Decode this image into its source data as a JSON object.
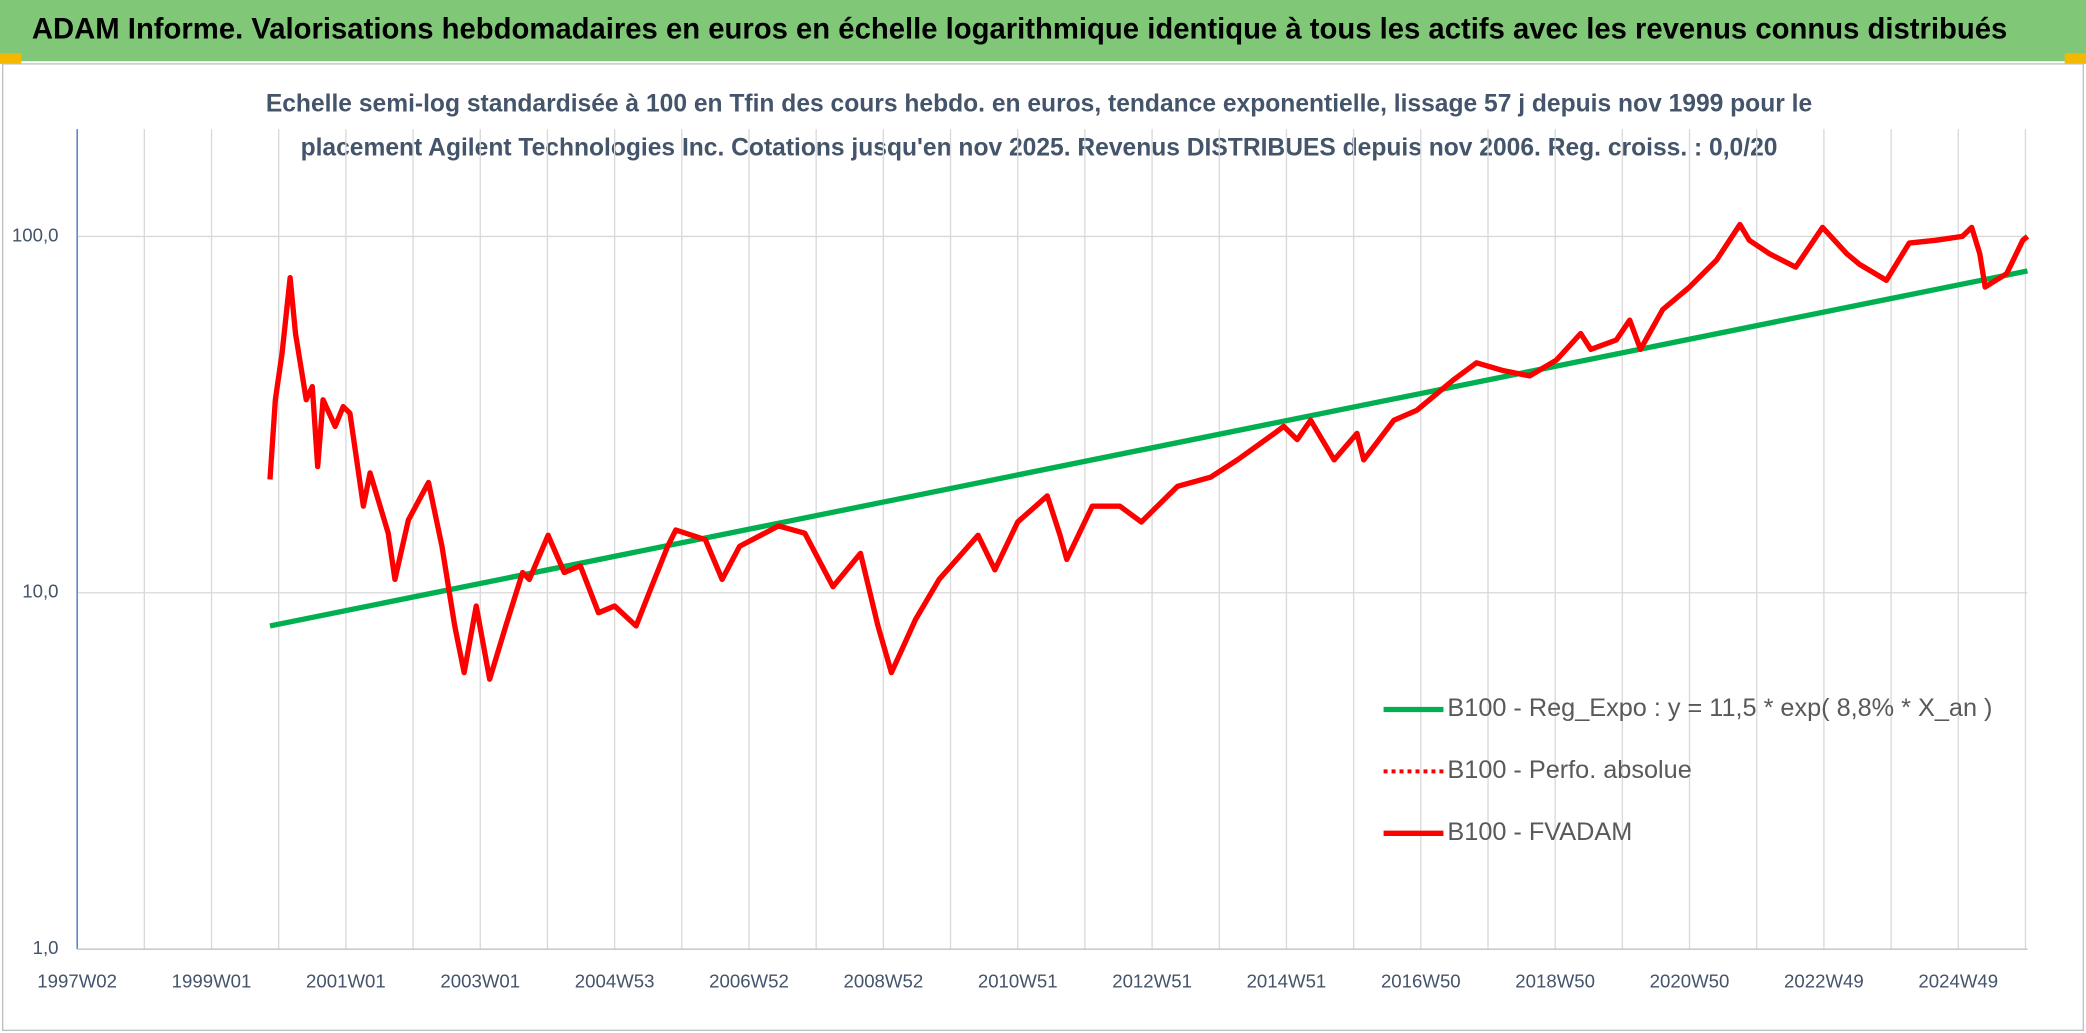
{
  "chart_data": {
    "type": "line",
    "title": "ADAM Informe. Valorisations hebdomadaires en euros en échelle logarithmique identique à tous les actifs avec les revenus connus distribués",
    "subtitle": [
      "Echelle semi-log standardisée à 100 en Tfin des cours hebdo. en euros, tendance exponentielle, lissage 57 j depuis nov 1999 pour le",
      "placement Agilent Technologies Inc. Cotations jusqu'en nov 2025. Revenus DISTRIBUES depuis nov 2006. Reg. croiss. : 0,0/20"
    ],
    "log_y": true,
    "grid": true,
    "legend": "right",
    "xlim": [
      1997,
      2026.03
    ],
    "xticks": [
      {
        "value": 1997,
        "label": "1997W02"
      },
      {
        "value": 1999,
        "label": "1999W01"
      },
      {
        "value": 2001,
        "label": "2001W01"
      },
      {
        "value": 2003,
        "label": "2003W01"
      },
      {
        "value": 2005,
        "label": "2004W53"
      },
      {
        "value": 2007,
        "label": "2006W52"
      },
      {
        "value": 2009,
        "label": "2008W52"
      },
      {
        "value": 2011,
        "label": "2010W51"
      },
      {
        "value": 2013,
        "label": "2012W51"
      },
      {
        "value": 2015,
        "label": "2014W51"
      },
      {
        "value": 2017,
        "label": "2016W50"
      },
      {
        "value": 2019,
        "label": "2018W50"
      },
      {
        "value": 2021,
        "label": "2020W50"
      },
      {
        "value": 2023,
        "label": "2022W49"
      },
      {
        "value": 2025,
        "label": "2024W49"
      }
    ],
    "xminorticks": [
      1998,
      2000,
      2002,
      2004,
      2006,
      2008,
      2010,
      2012,
      2014,
      2016,
      2018,
      2020,
      2022,
      2024,
      2026
    ],
    "ylim": [
      1,
      200
    ],
    "yticks": [
      {
        "value": 1,
        "label": "1,0"
      },
      {
        "value": 10,
        "label": "10,0"
      },
      {
        "value": 100,
        "label": "100,0"
      }
    ],
    "series": [
      {
        "name": "B100 - Reg_Expo : y = 11,5 * exp( 8,8% *  X_an )",
        "color": "#00b050",
        "dash": "solid",
        "x": [
          1999.87,
          2026.03
        ],
        "values": [
          8.07,
          80.0
        ]
      },
      {
        "name": "B100 - Perfo. absolue",
        "color": "#ff0000",
        "dash": "dotted",
        "x": [
          1999.87,
          1999.95,
          2000.05,
          2000.17,
          2000.25,
          2000.41,
          2000.5,
          2000.58,
          2000.66,
          2000.84,
          2000.96,
          2001.06,
          2001.26,
          2001.36,
          2001.63,
          2001.73,
          2001.93,
          2002.23,
          2002.43,
          2002.62,
          2002.76,
          2002.94,
          2003.14,
          2003.38,
          2003.63,
          2003.73,
          2004.01,
          2004.25,
          2004.49,
          2004.76,
          2005.0,
          2005.32,
          2005.55,
          2005.79,
          2005.91,
          2006.35,
          2006.6,
          2006.86,
          2007.44,
          2007.83,
          2008.25,
          2008.66,
          2008.92,
          2009.12,
          2009.48,
          2009.83,
          2010.41,
          2010.66,
          2011.0,
          2011.44,
          2011.63,
          2011.73,
          2012.11,
          2012.52,
          2012.84,
          2013.38,
          2013.87,
          2014.27,
          2014.82,
          2014.96,
          2015.16,
          2015.36,
          2015.71,
          2016.05,
          2016.15,
          2016.6,
          2016.94,
          2017.48,
          2017.83,
          2018.23,
          2018.62,
          2019.02,
          2019.38,
          2019.53,
          2019.91,
          2020.11,
          2020.27,
          2020.6,
          2021.0,
          2021.4,
          2021.75,
          2021.89,
          2022.19,
          2022.58,
          2022.98,
          2023.34,
          2023.53,
          2023.93,
          2024.27,
          2024.66,
          2025.06,
          2025.2,
          2025.32,
          2025.4,
          2025.72,
          2025.96,
          2026.03
        ],
        "values": [
          20.8,
          34.8,
          47.0,
          76.6,
          53.4,
          34.8,
          37.9,
          22.6,
          34.8,
          29.3,
          33.3,
          31.9,
          17.5,
          21.7,
          14.7,
          10.9,
          16.0,
          20.4,
          13.5,
          8.07,
          5.97,
          9.18,
          5.72,
          8.07,
          11.4,
          10.9,
          14.5,
          11.4,
          11.9,
          8.79,
          9.18,
          8.07,
          10.4,
          13.5,
          15.0,
          14.1,
          10.9,
          13.5,
          15.4,
          14.7,
          10.4,
          12.9,
          8.07,
          5.97,
          8.42,
          10.9,
          14.5,
          11.6,
          15.8,
          18.7,
          14.5,
          12.4,
          17.5,
          17.5,
          15.8,
          19.9,
          21.1,
          23.6,
          28.0,
          29.3,
          26.9,
          30.5,
          23.6,
          28.0,
          23.6,
          30.5,
          32.5,
          39.5,
          44.2,
          42.0,
          40.6,
          45.0,
          53.4,
          48.2,
          51.2,
          58.2,
          48.2,
          62.3,
          72.1,
          85.7,
          108,
          97.5,
          89.4,
          82.0,
          106,
          89.4,
          83.5,
          75.3,
          95.8,
          97.5,
          100,
          106,
          89.4,
          72.1,
          78.6,
          97.5,
          100
        ]
      },
      {
        "name": "B100 - FVADAM",
        "color": "#ff0000",
        "dash": "solid",
        "x": [
          1999.87,
          1999.95,
          2000.05,
          2000.17,
          2000.25,
          2000.41,
          2000.5,
          2000.58,
          2000.66,
          2000.84,
          2000.96,
          2001.06,
          2001.26,
          2001.36,
          2001.63,
          2001.73,
          2001.93,
          2002.23,
          2002.43,
          2002.62,
          2002.76,
          2002.94,
          2003.14,
          2003.38,
          2003.63,
          2003.73,
          2004.01,
          2004.25,
          2004.49,
          2004.76,
          2005.0,
          2005.32,
          2005.55,
          2005.79,
          2005.91,
          2006.35,
          2006.6,
          2006.86,
          2007.44,
          2007.83,
          2008.25,
          2008.66,
          2008.92,
          2009.12,
          2009.48,
          2009.83,
          2010.41,
          2010.66,
          2011.0,
          2011.44,
          2011.63,
          2011.73,
          2012.11,
          2012.52,
          2012.84,
          2013.38,
          2013.87,
          2014.27,
          2014.82,
          2014.96,
          2015.16,
          2015.36,
          2015.71,
          2016.05,
          2016.15,
          2016.6,
          2016.94,
          2017.48,
          2017.83,
          2018.23,
          2018.62,
          2019.02,
          2019.38,
          2019.53,
          2019.91,
          2020.11,
          2020.27,
          2020.6,
          2021.0,
          2021.4,
          2021.75,
          2021.89,
          2022.19,
          2022.58,
          2022.98,
          2023.34,
          2023.53,
          2023.93,
          2024.27,
          2024.66,
          2025.06,
          2025.2,
          2025.32,
          2025.4,
          2025.72,
          2025.96,
          2026.03
        ],
        "values": [
          20.8,
          34.8,
          47.0,
          76.6,
          53.4,
          34.8,
          37.9,
          22.6,
          34.8,
          29.3,
          33.3,
          31.9,
          17.5,
          21.7,
          14.7,
          10.9,
          16.0,
          20.4,
          13.5,
          8.07,
          5.97,
          9.18,
          5.72,
          8.07,
          11.4,
          10.9,
          14.5,
          11.4,
          11.9,
          8.79,
          9.18,
          8.07,
          10.4,
          13.5,
          15.0,
          14.1,
          10.9,
          13.5,
          15.4,
          14.7,
          10.4,
          12.9,
          8.07,
          5.97,
          8.42,
          10.9,
          14.5,
          11.6,
          15.8,
          18.7,
          14.5,
          12.4,
          17.5,
          17.5,
          15.8,
          19.9,
          21.1,
          23.6,
          28.0,
          29.3,
          26.9,
          30.5,
          23.6,
          28.0,
          23.6,
          30.5,
          32.5,
          39.5,
          44.2,
          42.0,
          40.6,
          45.0,
          53.4,
          48.2,
          51.2,
          58.2,
          48.2,
          62.3,
          72.1,
          85.7,
          108,
          97.5,
          89.4,
          82.0,
          106,
          89.4,
          83.5,
          75.3,
          95.8,
          97.5,
          100,
          106,
          89.4,
          72.1,
          78.6,
          97.5,
          100
        ]
      }
    ]
  }
}
